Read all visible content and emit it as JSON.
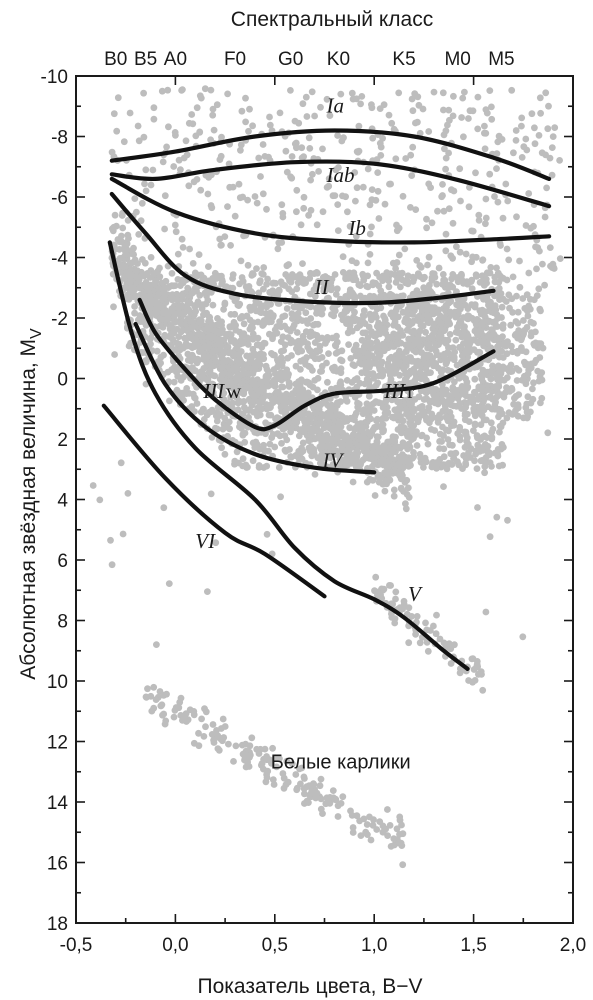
{
  "chart_data": {
    "type": "scatter",
    "title": "",
    "top_axis_title": "Спектральный класс",
    "xlabel": "Показатель цвета, B−V",
    "ylabel_main": "Абсолютная звёздная величина, M",
    "ylabel_sub": "V",
    "xlim": [
      -0.5,
      2.0
    ],
    "ylim": [
      18,
      -10
    ],
    "y_inverted": true,
    "grid": false,
    "legend": "none",
    "x_ticks": [
      "-0,5",
      "0,0",
      "0,5",
      "1,0",
      "1,5",
      "2,0"
    ],
    "x_tick_values": [
      -0.5,
      0.0,
      0.5,
      1.0,
      1.5,
      2.0
    ],
    "y_ticks": [
      "-10",
      "-8",
      "-6",
      "-4",
      "-2",
      "0",
      "2",
      "4",
      "6",
      "8",
      "10",
      "12",
      "14",
      "16",
      "18"
    ],
    "y_tick_values": [
      -10,
      -8,
      -6,
      -4,
      -2,
      0,
      2,
      4,
      6,
      8,
      10,
      12,
      14,
      16,
      18
    ],
    "spectral_classes": [
      {
        "label": "B0",
        "bv": -0.3
      },
      {
        "label": "B5",
        "bv": -0.15
      },
      {
        "label": "A0",
        "bv": 0.0
      },
      {
        "label": "F0",
        "bv": 0.3
      },
      {
        "label": "G0",
        "bv": 0.58
      },
      {
        "label": "K0",
        "bv": 0.82
      },
      {
        "label": "K5",
        "bv": 1.15
      },
      {
        "label": "M0",
        "bv": 1.42
      },
      {
        "label": "M5",
        "bv": 1.64
      }
    ],
    "point_color": "#bdbdbd",
    "line_color": "#111111",
    "luminosity_classes": [
      {
        "name": "Ia",
        "label_main": "Ia",
        "label_suffix": "",
        "label_at": [
          0.76,
          -8.8
        ],
        "points": [
          [
            -0.32,
            -7.2
          ],
          [
            0.0,
            -7.5
          ],
          [
            0.4,
            -8.0
          ],
          [
            0.8,
            -8.2
          ],
          [
            1.2,
            -8.0
          ],
          [
            1.6,
            -7.3
          ],
          [
            1.88,
            -6.6
          ]
        ]
      },
      {
        "name": "Iab",
        "label_main": "Iab",
        "label_suffix": "",
        "label_at": [
          0.76,
          -6.5
        ],
        "points": [
          [
            -0.32,
            -6.75
          ],
          [
            -0.1,
            -6.6
          ],
          [
            0.2,
            -6.9
          ],
          [
            0.6,
            -7.15
          ],
          [
            1.0,
            -7.1
          ],
          [
            1.4,
            -6.6
          ],
          [
            1.88,
            -5.7
          ]
        ]
      },
      {
        "name": "Ib",
        "label_main": "Ib",
        "label_suffix": "",
        "label_at": [
          0.87,
          -4.75
        ],
        "points": [
          [
            -0.32,
            -6.6
          ],
          [
            0.0,
            -5.5
          ],
          [
            0.4,
            -4.8
          ],
          [
            0.8,
            -4.55
          ],
          [
            1.2,
            -4.5
          ],
          [
            1.6,
            -4.6
          ],
          [
            1.88,
            -4.7
          ]
        ]
      },
      {
        "name": "II",
        "label_main": "II",
        "label_suffix": "",
        "label_at": [
          0.7,
          -2.8
        ],
        "points": [
          [
            -0.32,
            -6.1
          ],
          [
            -0.15,
            -4.8
          ],
          [
            0.05,
            -3.4
          ],
          [
            0.3,
            -2.8
          ],
          [
            0.65,
            -2.55
          ],
          [
            1.0,
            -2.5
          ],
          [
            1.3,
            -2.65
          ],
          [
            1.6,
            -2.9
          ]
        ]
      },
      {
        "name": "IIIw",
        "label_main": "III",
        "label_suffix": "w",
        "label_at": [
          0.14,
          0.65
        ],
        "points": [
          [
            -0.18,
            -2.6
          ],
          [
            -0.1,
            -1.5
          ],
          [
            0.05,
            -0.3
          ],
          [
            0.2,
            0.7
          ],
          [
            0.4,
            1.6
          ],
          [
            0.5,
            1.55
          ],
          [
            0.65,
            0.9
          ],
          [
            0.8,
            0.5
          ],
          [
            1.05,
            0.4
          ],
          [
            1.3,
            0.15
          ],
          [
            1.6,
            -0.9
          ]
        ]
      },
      {
        "name": "IIIr",
        "label_main": "III",
        "label_suffix": "r",
        "label_at": [
          1.05,
          0.65
        ],
        "points": []
      },
      {
        "name": "IV",
        "label_main": "IV",
        "label_suffix": "",
        "label_at": [
          0.74,
          2.95
        ],
        "points": [
          [
            -0.2,
            -1.8
          ],
          [
            -0.05,
            0.2
          ],
          [
            0.15,
            1.6
          ],
          [
            0.4,
            2.5
          ],
          [
            0.7,
            2.95
          ],
          [
            1.0,
            3.1
          ]
        ]
      },
      {
        "name": "V",
        "label_main": "V",
        "label_suffix": "",
        "label_at": [
          1.17,
          7.35
        ],
        "points": [
          [
            -0.33,
            -4.5
          ],
          [
            -0.22,
            -1.5
          ],
          [
            -0.1,
            0.5
          ],
          [
            0.1,
            2.3
          ],
          [
            0.4,
            4.0
          ],
          [
            0.6,
            5.6
          ],
          [
            0.8,
            6.7
          ],
          [
            1.0,
            7.3
          ],
          [
            1.15,
            7.9
          ],
          [
            1.35,
            9.0
          ],
          [
            1.47,
            9.6
          ]
        ]
      },
      {
        "name": "VI",
        "label_main": "VI",
        "label_suffix": "",
        "label_at": [
          0.1,
          5.6
        ],
        "points": [
          [
            -0.36,
            0.9
          ],
          [
            -0.05,
            3.3
          ],
          [
            0.25,
            5.1
          ],
          [
            0.45,
            5.8
          ],
          [
            0.75,
            7.2
          ]
        ]
      }
    ],
    "regions": [
      {
        "name": "Белые карлики",
        "label": "Белые карлики",
        "label_at": [
          0.48,
          12.9
        ]
      }
    ]
  }
}
